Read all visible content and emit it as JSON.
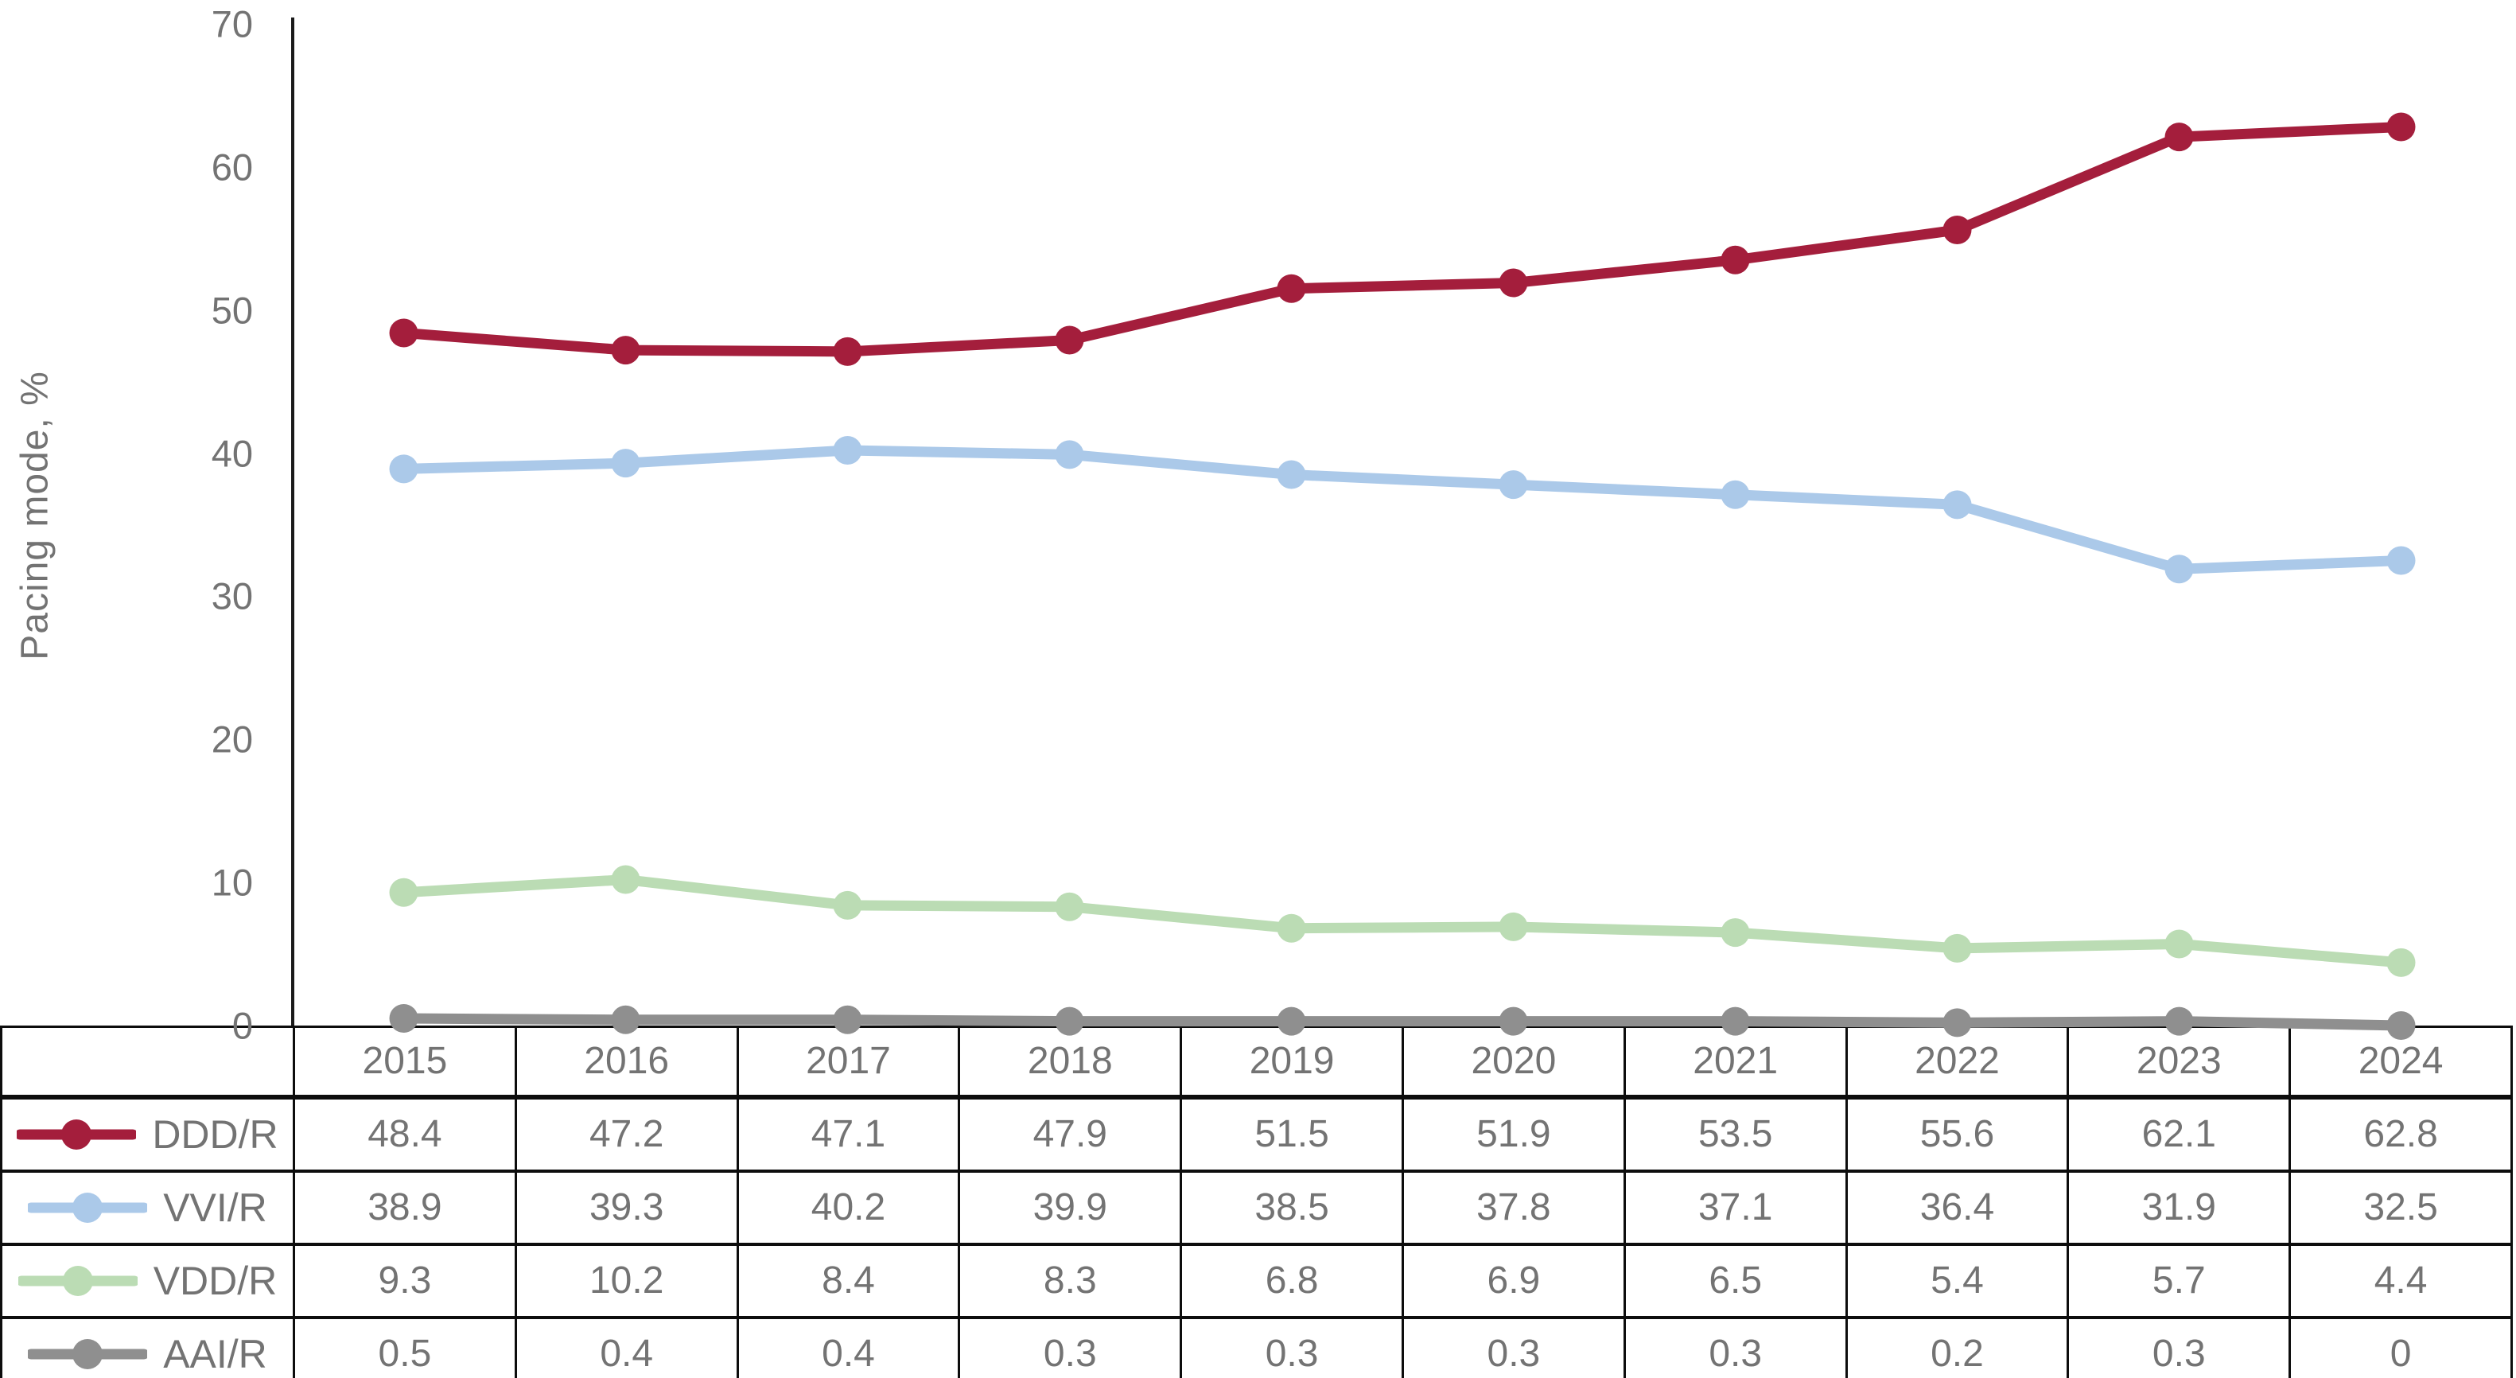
{
  "chart_data": {
    "type": "line",
    "title": "",
    "xlabel": "",
    "ylabel": "Pacing mode, %",
    "ylim": [
      0,
      70
    ],
    "yticks": [
      70,
      60,
      50,
      40,
      30,
      20,
      10,
      0
    ],
    "grid": false,
    "legend_position": "table-left-column",
    "categories": [
      "2015",
      "2016",
      "2017",
      "2018",
      "2019",
      "2020",
      "2021",
      "2022",
      "2023",
      "2024"
    ],
    "series": [
      {
        "name": "DDD/R",
        "color": "#a41e3c",
        "marker": "circle",
        "values": [
          48.4,
          47.2,
          47.1,
          47.9,
          51.5,
          51.9,
          53.5,
          55.6,
          62.1,
          62.8
        ]
      },
      {
        "name": "VVI/R",
        "color": "#abc9e9",
        "marker": "circle",
        "values": [
          38.9,
          39.3,
          40.2,
          39.9,
          38.5,
          37.8,
          37.1,
          36.4,
          31.9,
          32.5
        ]
      },
      {
        "name": "VDD/R",
        "color": "#bbdcb4",
        "marker": "circle",
        "values": [
          9.3,
          10.2,
          8.4,
          8.3,
          6.8,
          6.9,
          6.5,
          5.4,
          5.7,
          4.4
        ]
      },
      {
        "name": "AAI/R",
        "color": "#8f8f8f",
        "marker": "circle",
        "values": [
          0.5,
          0.4,
          0.4,
          0.3,
          0.3,
          0.3,
          0.3,
          0.2,
          0.3,
          0
        ]
      }
    ],
    "axis_color": "#1a1a1a",
    "text_color": "#737373"
  }
}
